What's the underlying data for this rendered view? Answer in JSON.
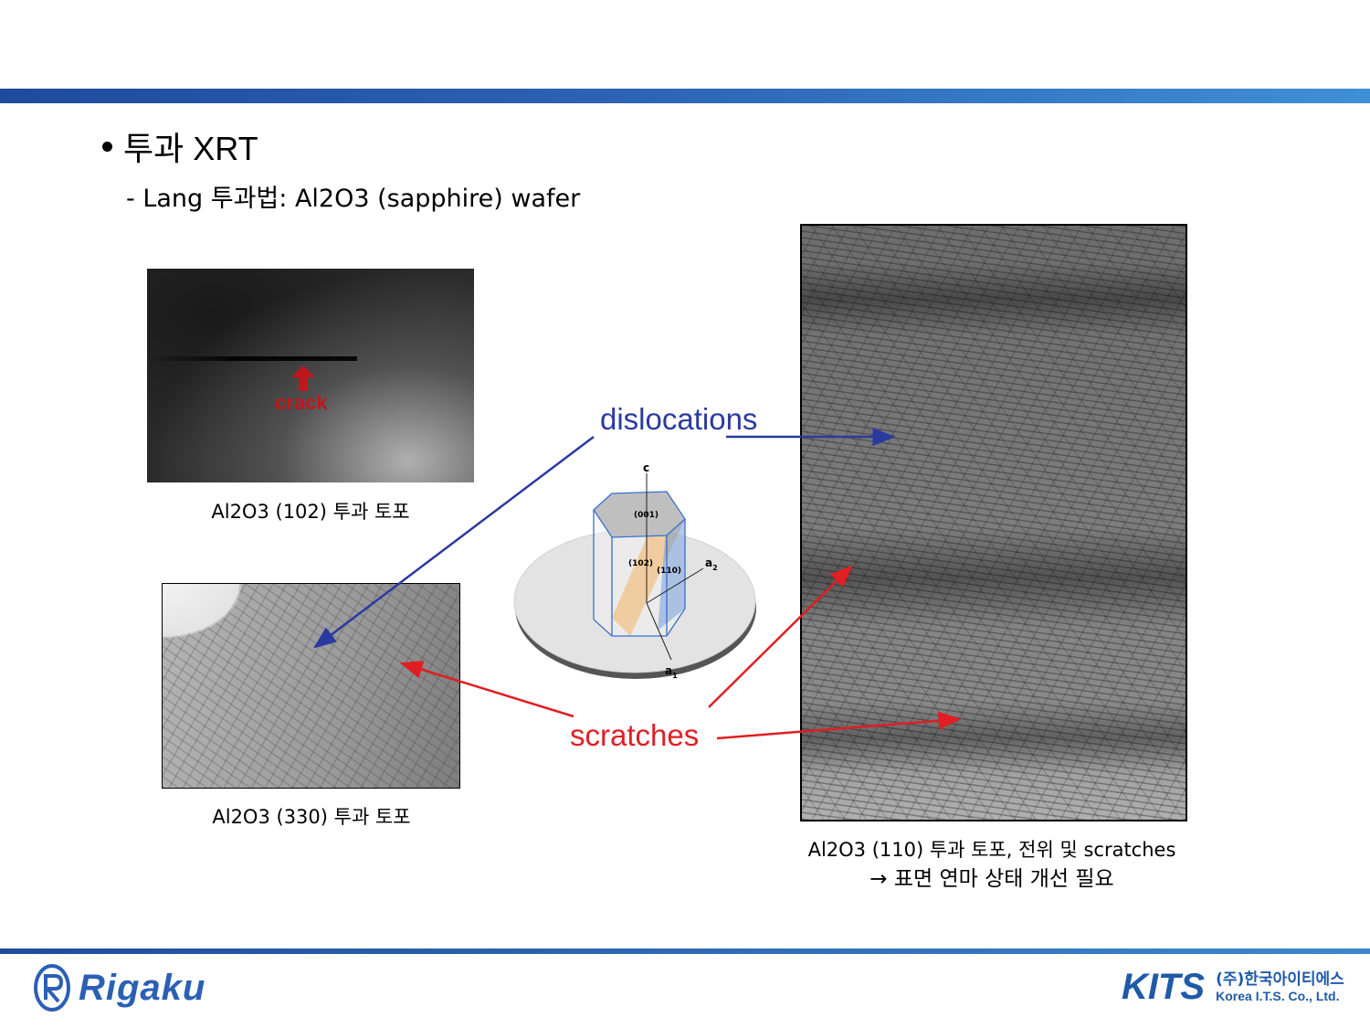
{
  "header": {
    "bullet_title": "투과 XRT",
    "subtitle": "- Lang 투과법: Al2O3 (sapphire) wafer"
  },
  "images": {
    "crack": {
      "label": "crack",
      "caption": "Al2O3 (102) 투과 토포"
    },
    "plane_330": {
      "caption": "Al2O3 (330) 투과 토포"
    },
    "plane_110": {
      "caption_line1": "Al2O3 (110) 투과 토포, 전위 및 scratches",
      "caption_line2": "→ 표면 연마 상태 개선 필요"
    }
  },
  "annotations": {
    "dislocations": "dislocations",
    "scratches": "scratches",
    "dislocations_color": "#2b3aa0",
    "scratches_color": "#e01e24"
  },
  "crystal_diagram": {
    "axis_c": "c",
    "axis_a1": "a",
    "axis_a1_sub": "1",
    "axis_a2": "a",
    "axis_a2_sub": "2",
    "plane_001": "(001)",
    "plane_102": "(102)",
    "plane_110": "(110)"
  },
  "footer": {
    "left_logo": "Rigaku",
    "right_logo": "KITS",
    "company_ko": "(주)한국아이티에스",
    "company_en": "Korea I.T.S. Co., Ltd."
  },
  "colors": {
    "bar_primary": "#1f4b9c",
    "bar_secondary": "#3f8fd6",
    "logo_blue": "#2a5fb5"
  }
}
